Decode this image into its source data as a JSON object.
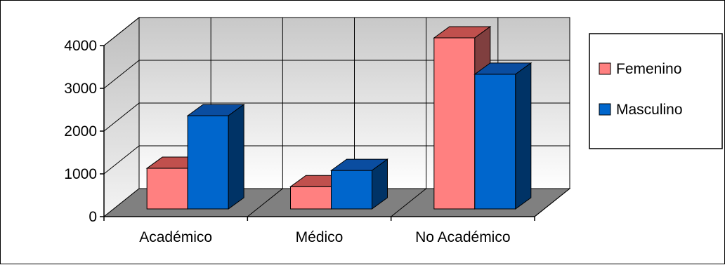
{
  "chart_data": {
    "type": "bar",
    "three_d": true,
    "categories": [
      "Académico",
      "Médico",
      "No Académico"
    ],
    "series": [
      {
        "name": "Femenino",
        "values": [
          950,
          520,
          4000
        ],
        "color": "#FF8080",
        "top_color": "#C0504D",
        "side_color": "#803F3F"
      },
      {
        "name": "Masculino",
        "values": [
          2180,
          900,
          3150
        ],
        "color": "#0066CC",
        "top_color": "#0A4DA0",
        "side_color": "#003366"
      }
    ],
    "ylim": [
      0,
      4000
    ],
    "yticks": [
      "0",
      "1000",
      "2000",
      "3000",
      "4000"
    ],
    "grid": true,
    "legend_position": "right",
    "colors": {
      "wall_top": "#C8C8C8",
      "wall_bottom": "#FFFFFF",
      "floor": "#808080",
      "side_wall": "#C0C0C0"
    }
  }
}
